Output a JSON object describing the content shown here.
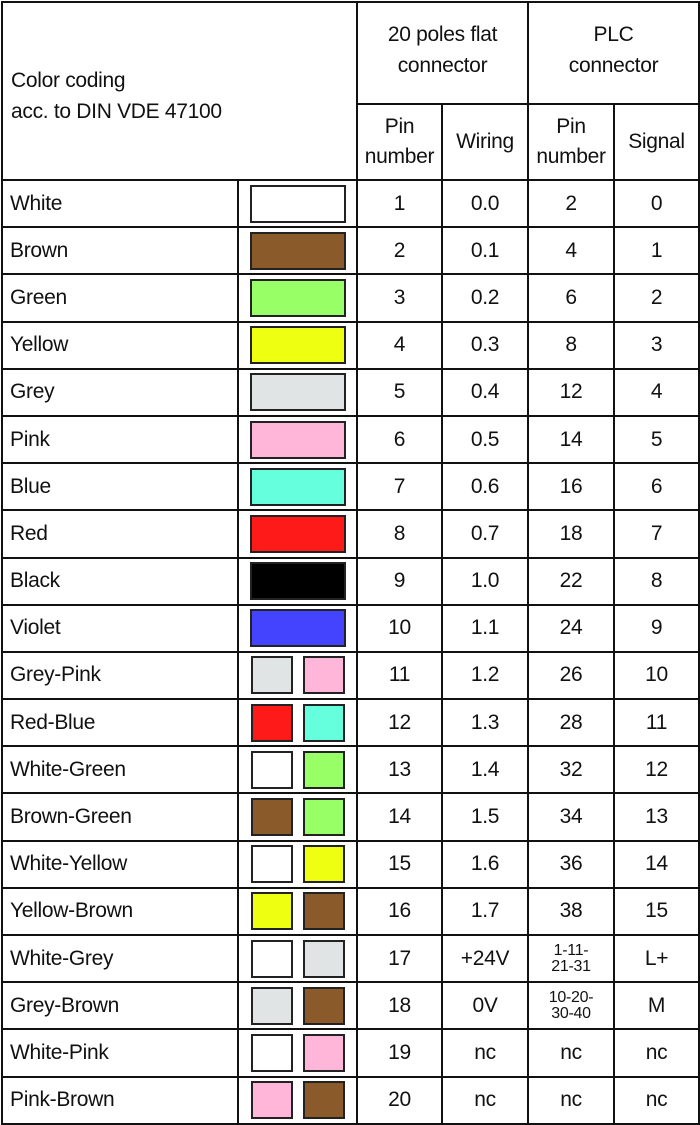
{
  "header": {
    "title_line1": "Color coding",
    "title_line2": "acc. to DIN VDE 47100",
    "group_flat": [
      "20 poles flat",
      "connector"
    ],
    "group_plc": [
      "PLC",
      "connector"
    ],
    "flat_pin": [
      "Pin",
      "number"
    ],
    "flat_wiring": "Wiring",
    "plc_pin": [
      "Pin",
      "number"
    ],
    "plc_signal": "Signal"
  },
  "colors": {
    "white": "#ffffff",
    "brown": "#8b5a2b",
    "green": "#99ff66",
    "yellow": "#eeff11",
    "grey": "#e0e4e4",
    "pink": "#ffb6d9",
    "blue": "#66ffdd",
    "red": "#ff1a1a",
    "black": "#000000",
    "violet": "#4444ff"
  },
  "rows": [
    {
      "name": "White",
      "swatch": [
        "white"
      ],
      "pin": "1",
      "wiring": "0.0",
      "plc_pin": [
        "2"
      ],
      "signal": "0"
    },
    {
      "name": "Brown",
      "swatch": [
        "brown"
      ],
      "pin": "2",
      "wiring": "0.1",
      "plc_pin": [
        "4"
      ],
      "signal": "1"
    },
    {
      "name": "Green",
      "swatch": [
        "green"
      ],
      "pin": "3",
      "wiring": "0.2",
      "plc_pin": [
        "6"
      ],
      "signal": "2"
    },
    {
      "name": "Yellow",
      "swatch": [
        "yellow"
      ],
      "pin": "4",
      "wiring": "0.3",
      "plc_pin": [
        "8"
      ],
      "signal": "3"
    },
    {
      "name": "Grey",
      "swatch": [
        "grey"
      ],
      "pin": "5",
      "wiring": "0.4",
      "plc_pin": [
        "12"
      ],
      "signal": "4"
    },
    {
      "name": "Pink",
      "swatch": [
        "pink"
      ],
      "pin": "6",
      "wiring": "0.5",
      "plc_pin": [
        "14"
      ],
      "signal": "5"
    },
    {
      "name": "Blue",
      "swatch": [
        "blue"
      ],
      "pin": "7",
      "wiring": "0.6",
      "plc_pin": [
        "16"
      ],
      "signal": "6"
    },
    {
      "name": "Red",
      "swatch": [
        "red"
      ],
      "pin": "8",
      "wiring": "0.7",
      "plc_pin": [
        "18"
      ],
      "signal": "7"
    },
    {
      "name": "Black",
      "swatch": [
        "black"
      ],
      "pin": "9",
      "wiring": "1.0",
      "plc_pin": [
        "22"
      ],
      "signal": "8"
    },
    {
      "name": "Violet",
      "swatch": [
        "violet"
      ],
      "pin": "10",
      "wiring": "1.1",
      "plc_pin": [
        "24"
      ],
      "signal": "9"
    },
    {
      "name": "Grey-Pink",
      "swatch": [
        "grey",
        "pink"
      ],
      "pin": "11",
      "wiring": "1.2",
      "plc_pin": [
        "26"
      ],
      "signal": "10"
    },
    {
      "name": "Red-Blue",
      "swatch": [
        "red",
        "blue"
      ],
      "pin": "12",
      "wiring": "1.3",
      "plc_pin": [
        "28"
      ],
      "signal": "11"
    },
    {
      "name": "White-Green",
      "swatch": [
        "white",
        "green"
      ],
      "pin": "13",
      "wiring": "1.4",
      "plc_pin": [
        "32"
      ],
      "signal": "12"
    },
    {
      "name": "Brown-Green",
      "swatch": [
        "brown",
        "green"
      ],
      "pin": "14",
      "wiring": "1.5",
      "plc_pin": [
        "34"
      ],
      "signal": "13"
    },
    {
      "name": "White-Yellow",
      "swatch": [
        "white",
        "yellow"
      ],
      "pin": "15",
      "wiring": "1.6",
      "plc_pin": [
        "36"
      ],
      "signal": "14"
    },
    {
      "name": "Yellow-Brown",
      "swatch": [
        "yellow",
        "brown"
      ],
      "pin": "16",
      "wiring": "1.7",
      "plc_pin": [
        "38"
      ],
      "signal": "15"
    },
    {
      "name": "White-Grey",
      "swatch": [
        "white",
        "grey"
      ],
      "pin": "17",
      "wiring": "+24V",
      "plc_pin": [
        "1-11-",
        "21-31"
      ],
      "signal": "L+"
    },
    {
      "name": "Grey-Brown",
      "swatch": [
        "grey",
        "brown"
      ],
      "pin": "18",
      "wiring": "0V",
      "plc_pin": [
        "10-20-",
        "30-40"
      ],
      "signal": "M"
    },
    {
      "name": "White-Pink",
      "swatch": [
        "white",
        "pink"
      ],
      "pin": "19",
      "wiring": "nc",
      "plc_pin": [
        "nc"
      ],
      "signal": "nc"
    },
    {
      "name": "Pink-Brown",
      "swatch": [
        "pink",
        "brown"
      ],
      "pin": "20",
      "wiring": "nc",
      "plc_pin": [
        "nc"
      ],
      "signal": "nc"
    }
  ]
}
